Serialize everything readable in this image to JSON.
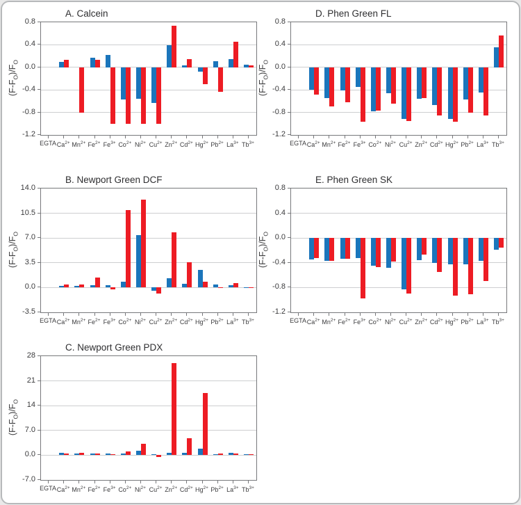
{
  "figure": {
    "ylabel_text": "(F-FO)/FO",
    "ylabel_parts": [
      {
        "t": "(F-F"
      },
      {
        "sub": "O"
      },
      {
        "t": ")/F"
      },
      {
        "sub": "O"
      }
    ]
  },
  "colors": {
    "series_blue": "#1B75BB",
    "series_red": "#ED1C24",
    "gridline": "#CDCED0",
    "frame": "#77787B",
    "text": "#3B3B3D",
    "card_border": "#B7B9BB",
    "background": "#FFFFFF"
  },
  "category_labels": [
    {
      "base": "EGTA",
      "sup": ""
    },
    {
      "base": "Ca",
      "sup": "2+"
    },
    {
      "base": "Mn",
      "sup": "2+"
    },
    {
      "base": "Fe",
      "sup": "2+"
    },
    {
      "base": "Fe",
      "sup": "3+"
    },
    {
      "base": "Co",
      "sup": "2+"
    },
    {
      "base": "Ni",
      "sup": "2+"
    },
    {
      "base": "Cu",
      "sup": "2+"
    },
    {
      "base": "Zn",
      "sup": "2+"
    },
    {
      "base": "Cd",
      "sup": "2+"
    },
    {
      "base": "Hg",
      "sup": "2+"
    },
    {
      "base": "Pb",
      "sup": "2+"
    },
    {
      "base": "La",
      "sup": "3+"
    },
    {
      "base": "Tb",
      "sup": "3+"
    }
  ],
  "chart_data": [
    {
      "id": "A",
      "type": "bar",
      "title": "A. Calcein",
      "xlabel": "",
      "ylabel": "(F-FO)/FO",
      "ylim": [
        -1.2,
        0.8
      ],
      "grid": true,
      "legend": false,
      "categories": [
        "EGTA",
        "Ca2+",
        "Mn2+",
        "Fe2+",
        "Fe3+",
        "Co2+",
        "Ni2+",
        "Cu2+",
        "Zn2+",
        "Cd2+",
        "Hg2+",
        "Pb2+",
        "La3+",
        "Tb3+"
      ],
      "yticks": [
        {
          "label": "0.8",
          "value": 0.8
        },
        {
          "label": "0.4",
          "value": 0.4
        },
        {
          "label": "0.0",
          "value": 0.0
        },
        {
          "label": "-0.4",
          "value": -0.4
        },
        {
          "label": "-0.8",
          "value": -0.8
        },
        {
          "label": "-1.2",
          "value": -1.2
        }
      ],
      "series": [
        {
          "name": "blue",
          "color": "#1B75BB",
          "values": [
            0,
            0.1,
            0,
            0.17,
            0.22,
            -0.57,
            -0.56,
            -0.63,
            0.39,
            0.03,
            -0.08,
            0.11,
            0.15,
            0.05
          ]
        },
        {
          "name": "red",
          "color": "#ED1C24",
          "values": [
            0,
            0.13,
            -0.8,
            0.13,
            -1.0,
            -1.0,
            -1.0,
            -1.0,
            0.74,
            0.15,
            -0.3,
            -0.43,
            0.45,
            0.03
          ]
        }
      ]
    },
    {
      "id": "D",
      "type": "bar",
      "title": "D. Phen Green FL",
      "xlabel": "",
      "ylabel": "(F-FO)/FO",
      "ylim": [
        -1.2,
        0.8
      ],
      "grid": true,
      "legend": false,
      "categories": [
        "EGTA",
        "Ca2+",
        "Mn2+",
        "Fe2+",
        "Fe3+",
        "Co2+",
        "Ni2+",
        "Cu2+",
        "Zn2+",
        "Cd2+",
        "Hg2+",
        "Pb2+",
        "La3+",
        "Tb3+"
      ],
      "yticks": [
        {
          "label": "0.8",
          "value": 0.8
        },
        {
          "label": "0.4",
          "value": 0.4
        },
        {
          "label": "0.0",
          "value": 0.0
        },
        {
          "label": "-0.4",
          "value": -0.4
        },
        {
          "label": "-0.8",
          "value": -0.8
        },
        {
          "label": "-1.2",
          "value": -1.2
        }
      ],
      "series": [
        {
          "name": "blue",
          "color": "#1B75BB",
          "values": [
            0,
            -0.4,
            -0.54,
            -0.41,
            -0.35,
            -0.78,
            -0.46,
            -0.92,
            -0.56,
            -0.67,
            -0.91,
            -0.57,
            -0.45,
            0.36
          ]
        },
        {
          "name": "red",
          "color": "#ED1C24",
          "values": [
            0,
            -0.48,
            -0.69,
            -0.62,
            -0.96,
            -0.77,
            -0.64,
            -0.95,
            -0.55,
            -0.85,
            -0.97,
            -0.8,
            -0.85,
            0.57
          ]
        }
      ]
    },
    {
      "id": "B",
      "type": "bar",
      "title": "B. Newport Green DCF",
      "xlabel": "",
      "ylabel": "(F-FO)/FO",
      "ylim": [
        -3.5,
        14.0
      ],
      "grid": true,
      "legend": false,
      "categories": [
        "EGTA",
        "Ca2+",
        "Mn2+",
        "Fe2+",
        "Fe3+",
        "Co2+",
        "Ni2+",
        "Cu2+",
        "Zn2+",
        "Cd2+",
        "Hg2+",
        "Pb2+",
        "La3+",
        "Tb3+"
      ],
      "yticks": [
        {
          "label": "14.0",
          "value": 14.0
        },
        {
          "label": "10.5",
          "value": 10.5
        },
        {
          "label": "7.0",
          "value": 7.0
        },
        {
          "label": "3.5",
          "value": 3.5
        },
        {
          "label": "0.0",
          "value": 0.0
        },
        {
          "label": "-3.5",
          "value": -3.5
        }
      ],
      "series": [
        {
          "name": "blue",
          "color": "#1B75BB",
          "values": [
            0,
            0.2,
            0.25,
            0.35,
            0.3,
            0.8,
            7.4,
            -0.5,
            1.3,
            0.5,
            2.5,
            0.4,
            0.3,
            -0.1
          ]
        },
        {
          "name": "red",
          "color": "#ED1C24",
          "values": [
            0,
            0.4,
            0.45,
            1.4,
            -0.3,
            11.0,
            12.4,
            -0.8,
            7.8,
            3.6,
            0.8,
            -0.1,
            0.6,
            -0.1
          ]
        }
      ]
    },
    {
      "id": "E",
      "type": "bar",
      "title": "E. Phen Green SK",
      "xlabel": "",
      "ylabel": "(F-FO)/FO",
      "ylim": [
        -1.2,
        0.8
      ],
      "grid": true,
      "legend": false,
      "categories": [
        "EGTA",
        "Ca2+",
        "Mn2+",
        "Fe2+",
        "Fe3+",
        "Co2+",
        "Ni2+",
        "Cu2+",
        "Zn2+",
        "Cd2+",
        "Hg2+",
        "Pb2+",
        "La3+",
        "Tb3+"
      ],
      "yticks": [
        {
          "label": "0.8",
          "value": 0.8
        },
        {
          "label": "0.4",
          "value": 0.4
        },
        {
          "label": "0.0",
          "value": 0.0
        },
        {
          "label": "-0.4",
          "value": -0.4
        },
        {
          "label": "-0.8",
          "value": -0.8
        },
        {
          "label": "-1.2",
          "value": -1.2
        }
      ],
      "series": [
        {
          "name": "blue",
          "color": "#1B75BB",
          "values": [
            0,
            -0.35,
            -0.37,
            -0.33,
            -0.32,
            -0.45,
            -0.48,
            -0.83,
            -0.36,
            -0.4,
            -0.42,
            -0.43,
            -0.37,
            -0.19
          ]
        },
        {
          "name": "red",
          "color": "#ED1C24",
          "values": [
            0,
            -0.32,
            -0.37,
            -0.34,
            -0.97,
            -0.47,
            -0.38,
            -0.9,
            -0.27,
            -0.55,
            -0.93,
            -0.91,
            -0.7,
            -0.15
          ]
        }
      ]
    },
    {
      "id": "C",
      "type": "bar",
      "title": "C. Newport Green PDX",
      "xlabel": "",
      "ylabel": "(F-FO)/FO",
      "ylim": [
        -7.0,
        28.0
      ],
      "grid": true,
      "legend": false,
      "categories": [
        "EGTA",
        "Ca2+",
        "Mn2+",
        "Fe2+",
        "Fe3+",
        "Co2+",
        "Ni2+",
        "Cu2+",
        "Zn2+",
        "Cd2+",
        "Hg2+",
        "Pb2+",
        "La3+",
        "Tb3+"
      ],
      "yticks": [
        {
          "label": "28",
          "value": 28
        },
        {
          "label": "21",
          "value": 21
        },
        {
          "label": "14",
          "value": 14
        },
        {
          "label": "7.0",
          "value": 7.0
        },
        {
          "label": "0.0",
          "value": 0.0
        },
        {
          "label": "-7.0",
          "value": -7.0
        }
      ],
      "series": [
        {
          "name": "blue",
          "color": "#1B75BB",
          "values": [
            0,
            0.6,
            0.5,
            0.5,
            0.5,
            0.5,
            1.3,
            0.2,
            0.7,
            0.6,
            1.9,
            0.3,
            0.6,
            0.1
          ]
        },
        {
          "name": "red",
          "color": "#ED1C24",
          "values": [
            0,
            0.5,
            0.6,
            0.5,
            0.3,
            1.0,
            3.3,
            -0.5,
            26.0,
            4.8,
            17.5,
            0.4,
            0.4,
            0.1
          ]
        }
      ]
    }
  ]
}
